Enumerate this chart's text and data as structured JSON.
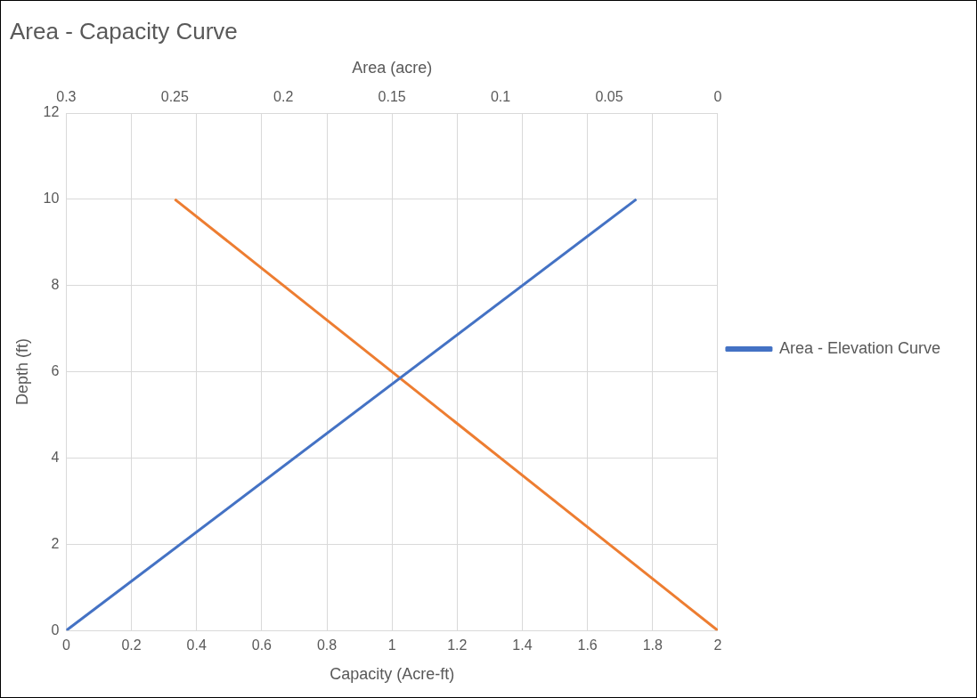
{
  "chart_data": {
    "type": "line",
    "title": "Area - Capacity Curve",
    "xlabel": "Capacity (Acre-ft)",
    "x2label": "Area (acre)",
    "ylabel": "Depth (ft)",
    "xlim": [
      0,
      2
    ],
    "xticks": [
      0,
      0.2,
      0.4,
      0.6,
      0.8,
      1,
      1.2,
      1.4,
      1.6,
      1.8,
      2
    ],
    "x2lim": [
      0.3,
      0
    ],
    "x2ticks": [
      0.3,
      0.25,
      0.2,
      0.15,
      0.1,
      0.05,
      0
    ],
    "ylim": [
      0,
      12
    ],
    "yticks": [
      0,
      2,
      4,
      6,
      8,
      10,
      12
    ],
    "grid": true,
    "legend": "right",
    "marker": "none",
    "line_style": "solid",
    "series": [
      {
        "name": "Area - Elevation Curve",
        "color": "#4472c4",
        "x": [
          0,
          1.75
        ],
        "values": [
          0,
          10
        ]
      },
      {
        "color": "#ed7d31",
        "axis": "x2",
        "x": [
          0,
          0.25
        ],
        "values": [
          0,
          10
        ]
      }
    ]
  }
}
